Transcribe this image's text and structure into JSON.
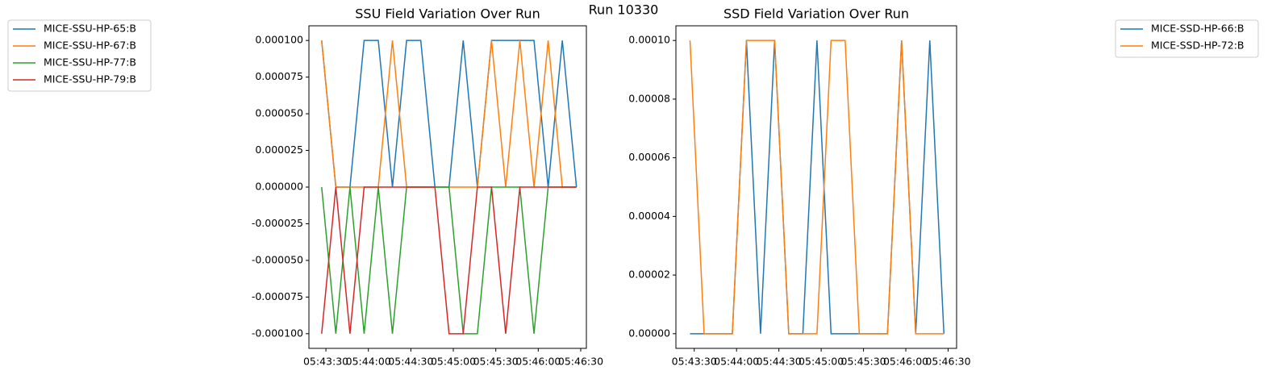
{
  "title": "Run 10330",
  "chart_data": [
    {
      "type": "line",
      "title": "SSU Field Variation Over Run",
      "legend": "left",
      "x": [
        "05:43:27",
        "05:43:37",
        "05:43:47",
        "05:43:57",
        "05:44:07",
        "05:44:17",
        "05:44:27",
        "05:44:37",
        "05:44:47",
        "05:44:57",
        "05:45:07",
        "05:45:17",
        "05:45:27",
        "05:45:37",
        "05:45:47",
        "05:45:57",
        "05:46:07",
        "05:46:17",
        "05:46:27"
      ],
      "xlim": [
        "05:43:18",
        "05:46:34"
      ],
      "xticks": [
        "05:43:30",
        "05:44:00",
        "05:44:30",
        "05:45:00",
        "05:45:30",
        "05:46:00",
        "05:46:30"
      ],
      "ylim": [
        -0.00011,
        0.00011
      ],
      "yticks": [
        {
          "value": -0.0001,
          "label": "-0.000100"
        },
        {
          "value": -7.5e-05,
          "label": "-0.000075"
        },
        {
          "value": -5e-05,
          "label": "-0.000050"
        },
        {
          "value": -2.5e-05,
          "label": "-0.000025"
        },
        {
          "value": 0,
          "label": "0.000000"
        },
        {
          "value": 2.5e-05,
          "label": "0.000025"
        },
        {
          "value": 5e-05,
          "label": "0.000050"
        },
        {
          "value": 7.5e-05,
          "label": "0.000075"
        },
        {
          "value": 0.0001,
          "label": "0.000100"
        }
      ],
      "series": [
        {
          "name": "MICE-SSU-HP-65:B",
          "color": "#1f77b4",
          "values": [
            0.0001,
            0,
            0,
            0.0001,
            0.0001,
            0,
            0.0001,
            0.0001,
            0,
            0,
            0.0001,
            0,
            0.0001,
            0.0001,
            0.0001,
            0.0001,
            0,
            0.0001,
            0
          ]
        },
        {
          "name": "MICE-SSU-HP-67:B",
          "color": "#ff7f0e",
          "values": [
            0.0001,
            0,
            0,
            0,
            0,
            0.0001,
            0,
            0,
            0,
            0,
            0,
            0,
            0.0001,
            0,
            0.0001,
            0,
            0.0001,
            0,
            0
          ]
        },
        {
          "name": "MICE-SSU-HP-77:B",
          "color": "#2ca02c",
          "values": [
            0,
            -0.0001,
            0,
            -0.0001,
            0,
            -0.0001,
            0,
            0,
            0,
            0,
            -0.0001,
            -0.0001,
            0,
            0,
            0,
            -0.0001,
            0,
            0,
            0
          ]
        },
        {
          "name": "MICE-SSU-HP-79:B",
          "color": "#d62728",
          "values": [
            -0.0001,
            0,
            -0.0001,
            0,
            0,
            0,
            0,
            0,
            0,
            -0.0001,
            -0.0001,
            0,
            0,
            -0.0001,
            0,
            0,
            0,
            0,
            0
          ]
        }
      ]
    },
    {
      "type": "line",
      "title": "SSD Field Variation Over Run",
      "legend": "right",
      "x": [
        "05:43:27",
        "05:43:37",
        "05:43:47",
        "05:43:57",
        "05:44:07",
        "05:44:17",
        "05:44:27",
        "05:44:37",
        "05:44:47",
        "05:44:57",
        "05:45:07",
        "05:45:17",
        "05:45:27",
        "05:45:37",
        "05:45:47",
        "05:45:57",
        "05:46:07",
        "05:46:17",
        "05:46:27"
      ],
      "xlim": [
        "05:43:17",
        "05:46:36"
      ],
      "xticks": [
        "05:43:30",
        "05:44:00",
        "05:44:30",
        "05:45:00",
        "05:45:30",
        "05:46:00",
        "05:46:30"
      ],
      "ylim": [
        -5e-06,
        0.000105
      ],
      "yticks": [
        {
          "value": 0,
          "label": "0.00000"
        },
        {
          "value": 2e-05,
          "label": "0.00002"
        },
        {
          "value": 4e-05,
          "label": "0.00004"
        },
        {
          "value": 6e-05,
          "label": "0.00006"
        },
        {
          "value": 8e-05,
          "label": "0.00008"
        },
        {
          "value": 0.0001,
          "label": "0.00010"
        }
      ],
      "series": [
        {
          "name": "MICE-SSD-HP-66:B",
          "color": "#1f77b4",
          "values": [
            0,
            0,
            0,
            0,
            0.0001,
            0,
            0.0001,
            0,
            0,
            0.0001,
            0,
            0,
            0,
            0,
            0,
            0.0001,
            0,
            0.0001,
            0
          ]
        },
        {
          "name": "MICE-SSD-HP-72:B",
          "color": "#ff7f0e",
          "values": [
            0.0001,
            0,
            0,
            0,
            0.0001,
            0.0001,
            0.0001,
            0,
            0,
            0,
            0.0001,
            0.0001,
            0,
            0,
            0,
            0.0001,
            0,
            0,
            0
          ]
        }
      ]
    }
  ]
}
